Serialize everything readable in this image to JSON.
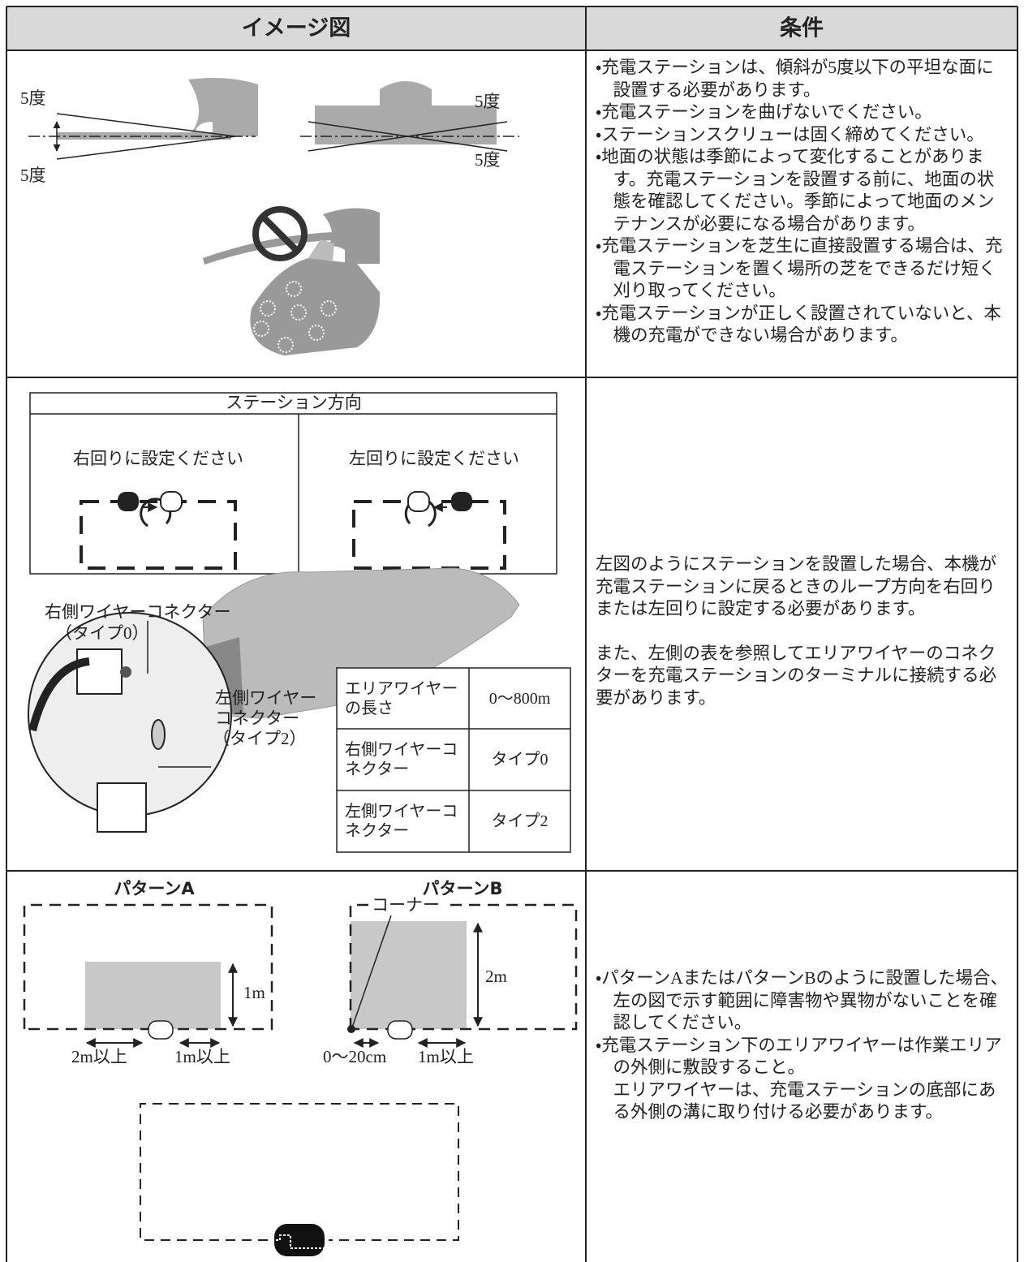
{
  "table": {
    "headers": [
      "イメージ図",
      "条件"
    ],
    "rows": [
      {
        "image": {
          "angle_labels": [
            "5度",
            "5度",
            "5度",
            "5度"
          ]
        },
        "conditions": [
          "・充電ステーションは、傾斜が5度以下の平坦な面に設置する必要があります。",
          "・充電ステーションを曲げないでください。",
          "・ステーションスクリューは固く締めてください。",
          "・地面の状態は季節によって変化することがあります。充電ステーションを設置する前に、地面の状態を確認してください。季節によって地面のメンテナンスが必要になる場合があります。",
          "・充電ステーションを芝生に直接設置する場合は、充電ステーションを置く場所の芝をできるだけ短く刈り取ってください。",
          "・充電ステーションが正しく設置されていないと、本機の充電ができない場合があります。"
        ]
      },
      {
        "image": {
          "direction": {
            "title": "ステーション方向",
            "options": [
              "右回りに設定ください",
              "左回りに設定ください"
            ]
          },
          "connector": {
            "right_label": [
              "右側ワイヤーコネクター",
              "（タイプ0）"
            ],
            "left_label": [
              "左側ワイヤー",
              "コネクター",
              "（タイプ2）"
            ]
          },
          "wire_table": [
            [
              "エリアワイヤーの長さ",
              "0〜800m"
            ],
            [
              "右側ワイヤーコネクター",
              "タイプ0"
            ],
            [
              "左側ワイヤーコネクター",
              "タイプ2"
            ]
          ]
        },
        "conditions": [
          "左図のようにステーションを設置した場合、本機が充電ステーションに戻るときのループ方向を右回りまたは左回りに設定する必要があります。",
          "また、左側の表を参照してエリアワイヤーのコネクターを充電ステーションのターミナルに接続する必要があります。"
        ]
      },
      {
        "image": {
          "pattern_a": {
            "title": "パターンA",
            "height": "1m",
            "left_gap": "2m以上",
            "right_gap": "1m以上"
          },
          "pattern_b": {
            "title": "パターンB",
            "corner": "コーナー",
            "height": "2m",
            "left_gap": "0〜20cm",
            "right_gap": "1m以上"
          }
        },
        "conditions": [
          "・パターンAまたはパターンBのように設置した場合、左の図で示す範囲に障害物や異物がないことを確認してください。",
          "・充電ステーション下のエリアワイヤーは作業エリアの外側に敷設すること。",
          "エリアワイヤーは、充電ステーションの底部にある外側の溝に取り付ける必要があります。"
        ]
      }
    ]
  }
}
